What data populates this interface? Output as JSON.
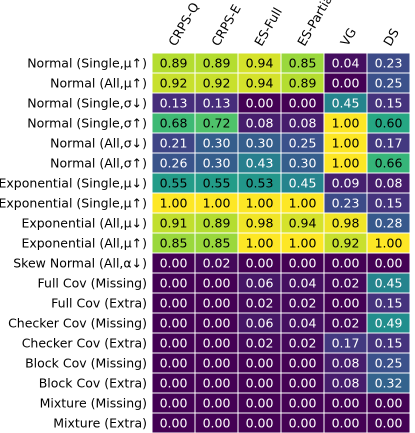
{
  "chart_data": {
    "type": "heatmap",
    "colormap": "viridis",
    "vmin": 0,
    "vmax": 1,
    "columns": [
      "CRPS-Q",
      "CRPS-E",
      "ES-Full",
      "ES-Partial",
      "VG",
      "DS"
    ],
    "rows": [
      {
        "label": "Normal (Single,μ↑)",
        "values": [
          0.89,
          0.89,
          0.94,
          0.85,
          0.04,
          0.23
        ]
      },
      {
        "label": "Normal (All,μ↑)",
        "values": [
          0.92,
          0.92,
          0.94,
          0.89,
          0.0,
          0.25
        ]
      },
      {
        "label": "Normal (Single,σ↓)",
        "values": [
          0.13,
          0.13,
          0.0,
          0.0,
          0.45,
          0.15
        ]
      },
      {
        "label": "Normal (Single,σ↑)",
        "values": [
          0.68,
          0.72,
          0.08,
          0.08,
          1.0,
          0.6
        ]
      },
      {
        "label": "Normal (All,σ↓)",
        "values": [
          0.21,
          0.3,
          0.3,
          0.25,
          1.0,
          0.17
        ]
      },
      {
        "label": "Normal (All,σ↑)",
        "values": [
          0.26,
          0.3,
          0.43,
          0.3,
          1.0,
          0.66
        ]
      },
      {
        "label": "Exponential (Single,μ↓)",
        "values": [
          0.55,
          0.55,
          0.53,
          0.45,
          0.09,
          0.08
        ]
      },
      {
        "label": "Exponential (Single,μ↑)",
        "values": [
          1.0,
          1.0,
          1.0,
          1.0,
          0.23,
          0.15
        ]
      },
      {
        "label": "Exponential (All,μ↓)",
        "values": [
          0.91,
          0.89,
          0.98,
          0.94,
          0.98,
          0.28
        ]
      },
      {
        "label": "Exponential (All,μ↑)",
        "values": [
          0.85,
          0.85,
          1.0,
          1.0,
          0.92,
          1.0
        ]
      },
      {
        "label": "Skew Normal (All,α↓)",
        "values": [
          0.0,
          0.02,
          0.0,
          0.0,
          0.0,
          0.0
        ]
      },
      {
        "label": "Full Cov (Missing)",
        "values": [
          0.0,
          0.0,
          0.06,
          0.04,
          0.02,
          0.45
        ]
      },
      {
        "label": "Full Cov (Extra)",
        "values": [
          0.0,
          0.0,
          0.02,
          0.02,
          0.0,
          0.15
        ]
      },
      {
        "label": "Checker Cov (Missing)",
        "values": [
          0.0,
          0.0,
          0.06,
          0.04,
          0.02,
          0.49
        ]
      },
      {
        "label": "Checker Cov (Extra)",
        "values": [
          0.0,
          0.0,
          0.02,
          0.02,
          0.17,
          0.15
        ]
      },
      {
        "label": "Block Cov (Missing)",
        "values": [
          0.0,
          0.0,
          0.0,
          0.0,
          0.08,
          0.25
        ]
      },
      {
        "label": "Block Cov (Extra)",
        "values": [
          0.0,
          0.0,
          0.0,
          0.0,
          0.08,
          0.32
        ]
      },
      {
        "label": "Mixture (Missing)",
        "values": [
          0.0,
          0.0,
          0.0,
          0.0,
          0.0,
          0.0
        ]
      },
      {
        "label": "Mixture (Extra)",
        "values": [
          0.0,
          0.0,
          0.0,
          0.0,
          0.0,
          0.0
        ]
      }
    ]
  }
}
